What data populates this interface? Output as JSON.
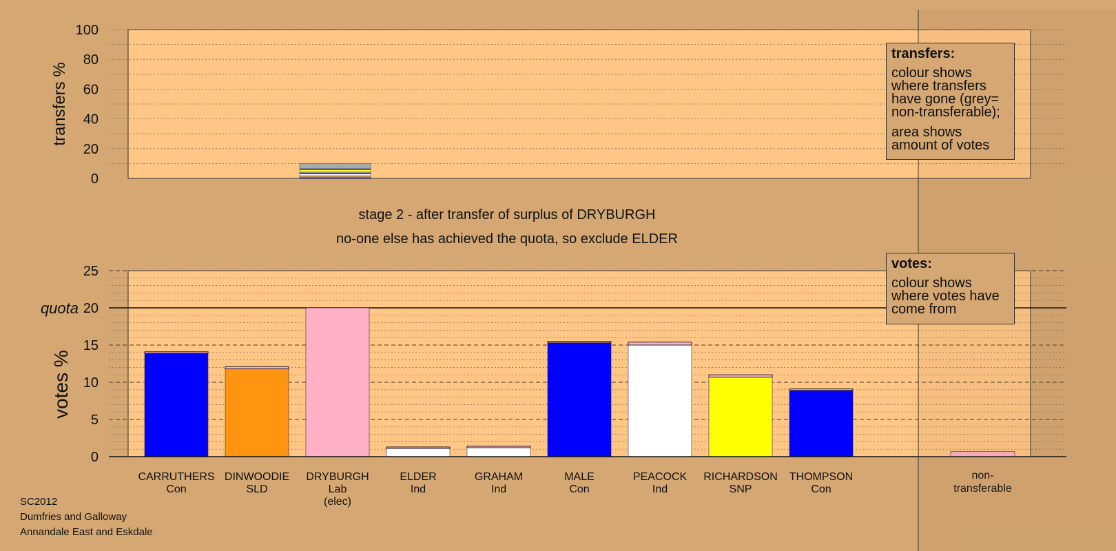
{
  "footer": {
    "line1": "SC2012",
    "line2": "Dumfries and Galloway",
    "line3": "Annandale East and Eskdale"
  },
  "legends": {
    "transfers": {
      "title": "transfers:",
      "text1": "colour shows where transfers have gone (grey= non-transferable);",
      "text2": "area shows amount of votes"
    },
    "votes": {
      "title": "votes:",
      "text1": "colour shows where votes have come from"
    }
  },
  "colors": {
    "background": "#d4a773",
    "plot_area": "#ffc685",
    "Con": "#0000ff",
    "SLD": "#ff9410",
    "Lab": "#ffb0c4",
    "Ind": "#ffffff",
    "SNP": "#ffff00",
    "non_transferable": "#aaaaaa"
  },
  "chart_data": [
    {
      "type": "bar",
      "panel": "transfers",
      "ylabel": "transfers %",
      "ylim": [
        0,
        100
      ],
      "yticks": [
        0,
        20,
        40,
        60,
        80,
        100
      ],
      "grid": true,
      "source_candidate": "DRYBURGH",
      "segments": [
        {
          "to": "CARRUTHERS",
          "value": 0.5,
          "color": "#0000ff"
        },
        {
          "to": "DINWOODIE",
          "value": 0.8,
          "color": "#ff9410"
        },
        {
          "to": "ELDER",
          "value": 0.9,
          "color": "#ffffff"
        },
        {
          "to": "GRAHAM",
          "value": 0.9,
          "color": "#ffffff"
        },
        {
          "to": "MALE",
          "value": 0.8,
          "color": "#0000ff"
        },
        {
          "to": "PEACOCK",
          "value": 1.0,
          "color": "#ffffff"
        },
        {
          "to": "RICHARDSON",
          "value": 1.0,
          "color": "#ffff00"
        },
        {
          "to": "THOMPSON",
          "value": 0.6,
          "color": "#0000ff"
        },
        {
          "to": "non-transferable",
          "value": 3.5,
          "color": "#aaaaaa"
        }
      ]
    },
    {
      "type": "bar",
      "panel": "votes",
      "stacked": true,
      "ylabel": "votes %",
      "ylim": [
        0,
        25
      ],
      "yticks": [
        0,
        5,
        10,
        15,
        20,
        25
      ],
      "quota": {
        "label": "quota",
        "value": 20
      },
      "grid": true,
      "titles": [
        "stage 2 - after transfer of surplus of DRYBURGH",
        "no-one else has achieved the quota, so exclude ELDER"
      ],
      "candidates": [
        {
          "name": "CARRUTHERS",
          "party": "Con",
          "extra": "",
          "color": "#0000ff",
          "first": 13.9,
          "transfer": 0.2
        },
        {
          "name": "DINWOODIE",
          "party": "SLD",
          "extra": "",
          "color": "#ff9410",
          "first": 11.8,
          "transfer": 0.3
        },
        {
          "name": "DRYBURGH",
          "party": "Lab",
          "extra": "(elec)",
          "color": "#ffb0c4",
          "first": 20.0,
          "transfer": 0
        },
        {
          "name": "ELDER",
          "party": "Ind",
          "extra": "",
          "color": "#ffffff",
          "first": 1.1,
          "transfer": 0.2
        },
        {
          "name": "GRAHAM",
          "party": "Ind",
          "extra": "",
          "color": "#ffffff",
          "first": 1.2,
          "transfer": 0.2
        },
        {
          "name": "MALE",
          "party": "Con",
          "extra": "",
          "color": "#0000ff",
          "first": 15.3,
          "transfer": 0.2
        },
        {
          "name": "PEACOCK",
          "party": "Ind",
          "extra": "",
          "color": "#ffffff",
          "first": 15.0,
          "transfer": 0.4
        },
        {
          "name": "RICHARDSON",
          "party": "SNP",
          "extra": "",
          "color": "#ffff00",
          "first": 10.7,
          "transfer": 0.3
        },
        {
          "name": "THOMPSON",
          "party": "Con",
          "extra": "",
          "color": "#0000ff",
          "first": 8.9,
          "transfer": 0.2
        }
      ],
      "non_transferable": {
        "label1": "non-",
        "label2": "transferable",
        "value": 0.7,
        "color": "#ffb0c4"
      }
    }
  ]
}
